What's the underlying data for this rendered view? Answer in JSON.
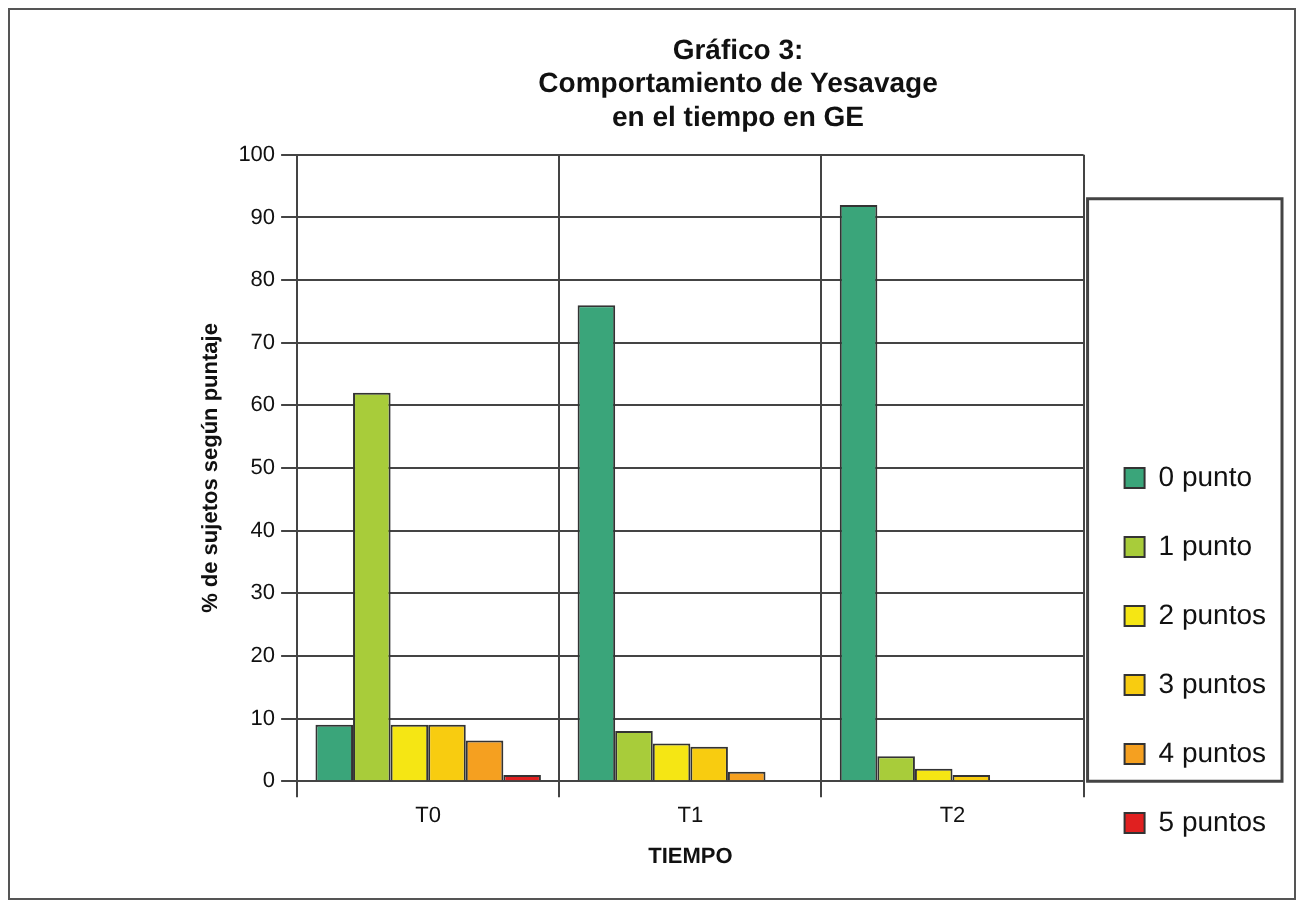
{
  "chart_data": {
    "type": "bar",
    "title": "Gráfico 3:\nComportamiento de Yesavage\nen el tiempo en GE",
    "xlabel": "TIEMPO",
    "ylabel": "% de sujetos según puntaje",
    "categories": [
      "T0",
      "T1",
      "T2"
    ],
    "series": [
      {
        "name": "0 punto",
        "color": "#3aa57a",
        "values": [
          9,
          76,
          92
        ]
      },
      {
        "name": "1 punto",
        "color": "#a8cc3a",
        "values": [
          62,
          8,
          4
        ]
      },
      {
        "name": "2 puntos",
        "color": "#f5e614",
        "values": [
          9,
          6,
          2
        ]
      },
      {
        "name": "3 puntos",
        "color": "#f8cc10",
        "values": [
          9,
          5.5,
          1
        ]
      },
      {
        "name": "4 puntos",
        "color": "#f5a020",
        "values": [
          6.5,
          1.5,
          0
        ]
      },
      {
        "name": "5 puntos",
        "color": "#e02020",
        "values": [
          1,
          0,
          0
        ]
      }
    ],
    "ylim": [
      0,
      100
    ],
    "yticks": [
      0,
      10,
      20,
      30,
      40,
      50,
      60,
      70,
      80,
      90,
      100
    ],
    "grid": true,
    "legend": "right"
  }
}
